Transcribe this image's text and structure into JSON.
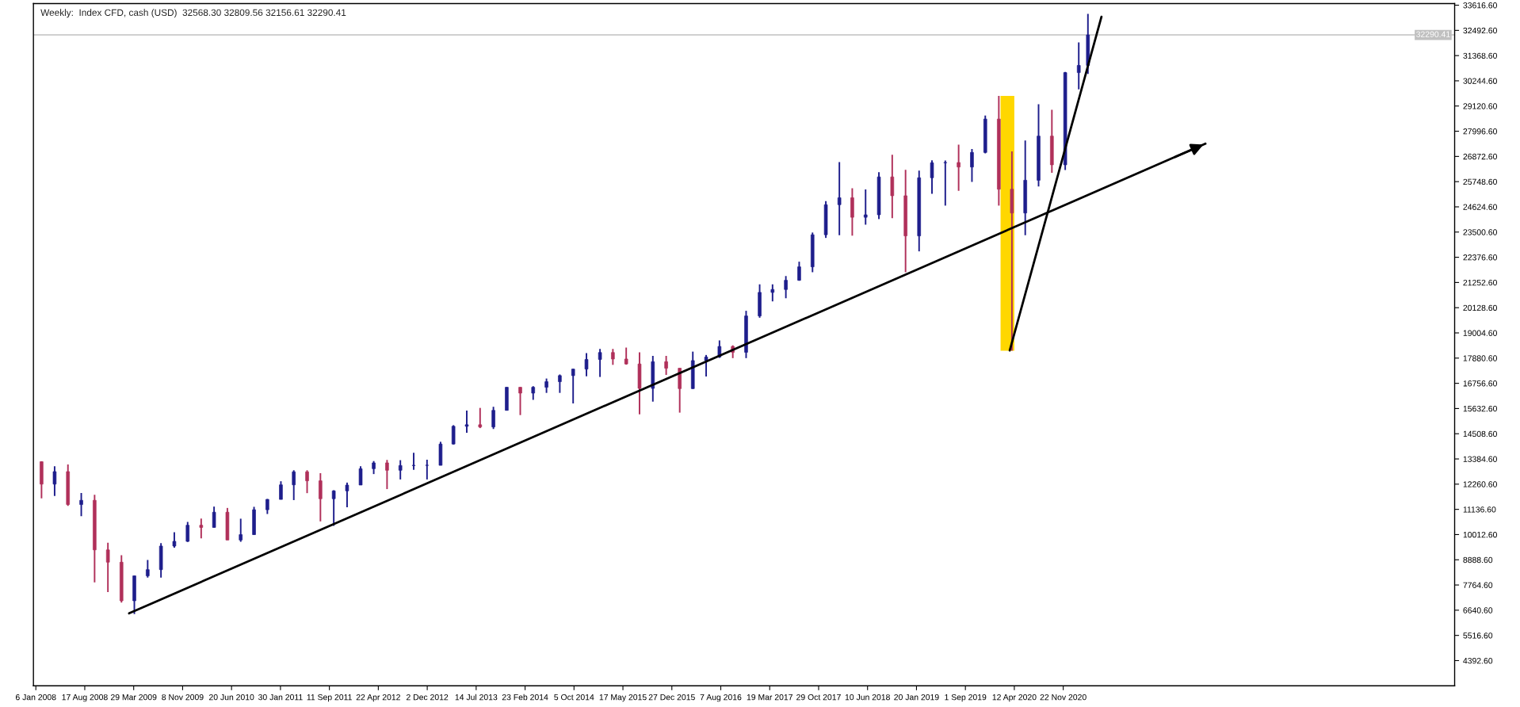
{
  "chart_data": {
    "type": "candlestick",
    "title": "Weekly:  Index CFD, cash (USD)  32568.30 32809.56 32156.61 32290.41",
    "x": [
      "2008-02-01",
      "2008-04-01",
      "2008-06-01",
      "2008-08-01",
      "2008-10-01",
      "2008-12-01",
      "2009-02-01",
      "2009-04-01",
      "2009-06-01",
      "2009-08-01",
      "2009-10-01",
      "2009-12-01",
      "2010-02-01",
      "2010-04-01",
      "2010-06-01",
      "2010-08-01",
      "2010-10-01",
      "2010-12-01",
      "2011-02-01",
      "2011-04-01",
      "2011-06-01",
      "2011-08-01",
      "2011-10-01",
      "2011-12-01",
      "2012-02-01",
      "2012-04-01",
      "2012-06-01",
      "2012-08-01",
      "2012-10-01",
      "2012-12-01",
      "2013-02-01",
      "2013-04-01",
      "2013-06-01",
      "2013-08-01",
      "2013-10-01",
      "2013-12-01",
      "2014-02-01",
      "2014-04-01",
      "2014-06-01",
      "2014-08-01",
      "2014-10-01",
      "2014-12-01",
      "2015-02-01",
      "2015-04-01",
      "2015-06-01",
      "2015-08-01",
      "2015-10-01",
      "2015-12-01",
      "2016-02-01",
      "2016-04-01",
      "2016-06-01",
      "2016-08-01",
      "2016-10-01",
      "2016-12-01",
      "2017-02-01",
      "2017-04-01",
      "2017-06-01",
      "2017-08-01",
      "2017-10-01",
      "2017-12-01",
      "2018-02-01",
      "2018-04-01",
      "2018-06-01",
      "2018-08-01",
      "2018-10-01",
      "2018-12-01",
      "2019-02-01",
      "2019-04-01",
      "2019-06-01",
      "2019-08-01",
      "2019-10-01",
      "2019-12-01",
      "2020-02-01",
      "2020-04-01",
      "2020-06-01",
      "2020-08-01",
      "2020-10-01",
      "2020-12-01",
      "2021-02-01",
      "2021-03-15"
    ],
    "ohlc": [
      [
        13260,
        13280,
        11630,
        12260
      ],
      [
        12260,
        13060,
        11730,
        12820
      ],
      [
        12820,
        13140,
        11290,
        11350
      ],
      [
        11350,
        11870,
        10830,
        11540
      ],
      [
        11540,
        11790,
        7880,
        9330
      ],
      [
        9330,
        9650,
        7450,
        8780
      ],
      [
        8780,
        9090,
        6980,
        7060
      ],
      [
        7060,
        8180,
        6470,
        8170
      ],
      [
        8170,
        8880,
        8090,
        8450
      ],
      [
        8450,
        9630,
        8090,
        9500
      ],
      [
        9500,
        10120,
        9430,
        9710
      ],
      [
        9710,
        10580,
        9680,
        10430
      ],
      [
        10430,
        10730,
        9840,
        10330
      ],
      [
        10330,
        11260,
        10330,
        11010
      ],
      [
        11010,
        11200,
        9770,
        9770
      ],
      [
        9770,
        10720,
        9690,
        10010
      ],
      [
        10010,
        11250,
        10000,
        11120
      ],
      [
        11120,
        11600,
        10930,
        11580
      ],
      [
        11580,
        12390,
        11580,
        12230
      ],
      [
        12230,
        12880,
        11550,
        12810
      ],
      [
        12810,
        12880,
        11860,
        12410
      ],
      [
        12410,
        12750,
        10600,
        11610
      ],
      [
        11610,
        11990,
        10400,
        11960
      ],
      [
        11960,
        12330,
        11230,
        12220
      ],
      [
        12220,
        13060,
        12220,
        12950
      ],
      [
        12950,
        13290,
        12710,
        13210
      ],
      [
        13210,
        13340,
        12040,
        12880
      ],
      [
        12880,
        13330,
        12470,
        13090
      ],
      [
        13090,
        13660,
        12900,
        13100
      ],
      [
        13100,
        13350,
        12470,
        13100
      ],
      [
        13100,
        14150,
        13100,
        14050
      ],
      [
        14050,
        14890,
        14030,
        14840
      ],
      [
        14840,
        15540,
        14550,
        14910
      ],
      [
        14910,
        15660,
        14760,
        14810
      ],
      [
        14810,
        15710,
        14720,
        15550
      ],
      [
        15550,
        16590,
        15550,
        16580
      ],
      [
        16580,
        16590,
        15340,
        16320
      ],
      [
        16320,
        16630,
        16020,
        16580
      ],
      [
        16580,
        16970,
        16330,
        16830
      ],
      [
        16830,
        17150,
        16330,
        17100
      ],
      [
        17100,
        17400,
        15860,
        17390
      ],
      [
        17390,
        18100,
        17070,
        17820
      ],
      [
        17820,
        18290,
        17040,
        18130
      ],
      [
        18130,
        18290,
        17580,
        17840
      ],
      [
        17840,
        18350,
        17590,
        17620
      ],
      [
        17620,
        18140,
        15370,
        16530
      ],
      [
        16530,
        17980,
        15940,
        17720
      ],
      [
        17720,
        17980,
        17130,
        17430
      ],
      [
        17430,
        17430,
        15450,
        16520
      ],
      [
        16520,
        18170,
        16510,
        17770
      ],
      [
        17770,
        18020,
        17060,
        17930
      ],
      [
        17930,
        18670,
        17890,
        18400
      ],
      [
        18400,
        18450,
        17880,
        18140
      ],
      [
        18140,
        19990,
        17880,
        19760
      ],
      [
        19760,
        21170,
        19680,
        20810
      ],
      [
        20810,
        21170,
        20410,
        20940
      ],
      [
        20940,
        21540,
        20550,
        21350
      ],
      [
        21350,
        22180,
        21330,
        21950
      ],
      [
        21950,
        23480,
        21710,
        23380
      ],
      [
        23380,
        24880,
        23240,
        24720
      ],
      [
        24720,
        26620,
        23360,
        25030
      ],
      [
        25030,
        25450,
        23340,
        24160
      ],
      [
        24160,
        25400,
        23830,
        24270
      ],
      [
        24270,
        26170,
        24080,
        25960
      ],
      [
        25960,
        26950,
        24120,
        25120
      ],
      [
        25120,
        26280,
        21710,
        23330
      ],
      [
        23330,
        26240,
        22640,
        25920
      ],
      [
        25920,
        26700,
        25210,
        26590
      ],
      [
        26590,
        26690,
        24680,
        26600
      ],
      [
        26600,
        27400,
        25340,
        26400
      ],
      [
        26400,
        27200,
        25740,
        27050
      ],
      [
        27050,
        28700,
        27010,
        28540
      ],
      [
        28540,
        29570,
        24680,
        25410
      ],
      [
        25410,
        27100,
        18210,
        24350
      ],
      [
        24350,
        27580,
        23360,
        25810
      ],
      [
        25810,
        29200,
        25530,
        27780
      ],
      [
        27780,
        28950,
        26140,
        26500
      ],
      [
        26500,
        30640,
        26270,
        30610
      ],
      [
        30610,
        31960,
        29860,
        30930
      ],
      [
        30930,
        33230,
        30550,
        32290
      ]
    ],
    "colors": [
      "#b0305a",
      "#1e1e8c",
      "#b0305a",
      "#1e1e8c",
      "#b0305a",
      "#b0305a",
      "#b0305a",
      "#1e1e8c",
      "#1e1e8c",
      "#1e1e8c",
      "#1e1e8c",
      "#1e1e8c",
      "#b0305a",
      "#1e1e8c",
      "#b0305a",
      "#1e1e8c",
      "#1e1e8c",
      "#1e1e8c",
      "#1e1e8c",
      "#1e1e8c",
      "#b0305a",
      "#b0305a",
      "#1e1e8c",
      "#1e1e8c",
      "#1e1e8c",
      "#1e1e8c",
      "#b0305a",
      "#1e1e8c",
      "#1e1e8c",
      "#1e1e8c",
      "#1e1e8c",
      "#1e1e8c",
      "#1e1e8c",
      "#b0305a",
      "#1e1e8c",
      "#1e1e8c",
      "#b0305a",
      "#1e1e8c",
      "#1e1e8c",
      "#1e1e8c",
      "#1e1e8c",
      "#1e1e8c",
      "#1e1e8c",
      "#b0305a",
      "#b0305a",
      "#b0305a",
      "#1e1e8c",
      "#b0305a",
      "#b0305a",
      "#1e1e8c",
      "#1e1e8c",
      "#1e1e8c",
      "#b0305a",
      "#1e1e8c",
      "#1e1e8c",
      "#1e1e8c",
      "#1e1e8c",
      "#1e1e8c",
      "#1e1e8c",
      "#1e1e8c",
      "#1e1e8c",
      "#b0305a",
      "#1e1e8c",
      "#1e1e8c",
      "#b0305a",
      "#b0305a",
      "#1e1e8c",
      "#1e1e8c",
      "#1e1e8c",
      "#b0305a",
      "#1e1e8c",
      "#1e1e8c",
      "#b0305a",
      "#b0305a",
      "#1e1e8c",
      "#1e1e8c",
      "#b0305a",
      "#1e1e8c",
      "#1e1e8c",
      "#1e1e8c"
    ],
    "series": [
      {
        "type": "line",
        "x": [
          "2009-03-08",
          "2022-09-04"
        ],
        "values": [
          6500,
          27440
        ],
        "color": "#000000"
      },
      {
        "type": "line",
        "x": [
          "2020-03-22",
          "2021-05-16"
        ],
        "values": [
          18220,
          33100
        ],
        "color": "#000000"
      }
    ],
    "bands": [
      {
        "axis": "x",
        "from": "2020-02-09",
        "to": "2020-04-12",
        "color": "#ffd700"
      }
    ],
    "ref_lines": [
      {
        "axis": "y",
        "value": 32290.41,
        "label": "32290.41",
        "color": "#c0c0c0"
      }
    ],
    "xlim": [
      "2007-12-26",
      "2025-10-19"
    ],
    "xticks": [
      {
        "value": "2008-01-06",
        "label": "6 Jan 2008"
      },
      {
        "value": "2008-08-17",
        "label": "17 Aug 2008"
      },
      {
        "value": "2009-03-29",
        "label": "29 Mar 2009"
      },
      {
        "value": "2009-11-08",
        "label": "8 Nov 2009"
      },
      {
        "value": "2010-06-20",
        "label": "20 Jun 2010"
      },
      {
        "value": "2011-01-30",
        "label": "30 Jan 2011"
      },
      {
        "value": "2011-09-11",
        "label": "11 Sep 2011"
      },
      {
        "value": "2012-04-22",
        "label": "22 Apr 2012"
      },
      {
        "value": "2012-12-02",
        "label": "2 Dec 2012"
      },
      {
        "value": "2013-07-14",
        "label": "14 Jul 2013"
      },
      {
        "value": "2014-02-23",
        "label": "23 Feb 2014"
      },
      {
        "value": "2014-10-05",
        "label": "5 Oct 2014"
      },
      {
        "value": "2015-05-17",
        "label": "17 May 2015"
      },
      {
        "value": "2015-12-27",
        "label": "27 Dec 2015"
      },
      {
        "value": "2016-08-07",
        "label": "7 Aug 2016"
      },
      {
        "value": "2017-03-19",
        "label": "19 Mar 2017"
      },
      {
        "value": "2017-10-29",
        "label": "29 Oct 2017"
      },
      {
        "value": "2018-06-10",
        "label": "10 Jun 2018"
      },
      {
        "value": "2019-01-20",
        "label": "20 Jan 2019"
      },
      {
        "value": "2019-09-01",
        "label": "1 Sep 2019"
      },
      {
        "value": "2020-04-12",
        "label": "12 Apr 2020"
      },
      {
        "value": "2020-11-22",
        "label": "22 Nov 2020"
      }
    ],
    "ylim": [
      3270,
      33690
    ],
    "yticks": [
      {
        "value": 4392.6,
        "label": "4392.60"
      },
      {
        "value": 5516.6,
        "label": "5516.60"
      },
      {
        "value": 6640.6,
        "label": "6640.60"
      },
      {
        "value": 7764.6,
        "label": "7764.60"
      },
      {
        "value": 8888.6,
        "label": "8888.60"
      },
      {
        "value": 10012.6,
        "label": "10012.60"
      },
      {
        "value": 11136.6,
        "label": "11136.60"
      },
      {
        "value": 12260.6,
        "label": "12260.60"
      },
      {
        "value": 13384.6,
        "label": "13384.60"
      },
      {
        "value": 14508.6,
        "label": "14508.60"
      },
      {
        "value": 15632.6,
        "label": "15632.60"
      },
      {
        "value": 16756.6,
        "label": "16756.60"
      },
      {
        "value": 17880.6,
        "label": "17880.60"
      },
      {
        "value": 19004.6,
        "label": "19004.60"
      },
      {
        "value": 20128.6,
        "label": "20128.60"
      },
      {
        "value": 21252.6,
        "label": "21252.60"
      },
      {
        "value": 22376.6,
        "label": "22376.60"
      },
      {
        "value": 23500.6,
        "label": "23500.60"
      },
      {
        "value": 24624.6,
        "label": "24624.60"
      },
      {
        "value": 25748.6,
        "label": "25748.60"
      },
      {
        "value": 26872.6,
        "label": "26872.60"
      },
      {
        "value": 27996.6,
        "label": "27996.60"
      },
      {
        "value": 29120.6,
        "label": "29120.60"
      },
      {
        "value": 30244.6,
        "label": "30244.60"
      },
      {
        "value": 31368.6,
        "label": "31368.60"
      },
      {
        "value": 32492.6,
        "label": "32492.60"
      },
      {
        "value": 33616.6,
        "label": "33616.60"
      }
    ],
    "grid": false,
    "legend": false
  }
}
